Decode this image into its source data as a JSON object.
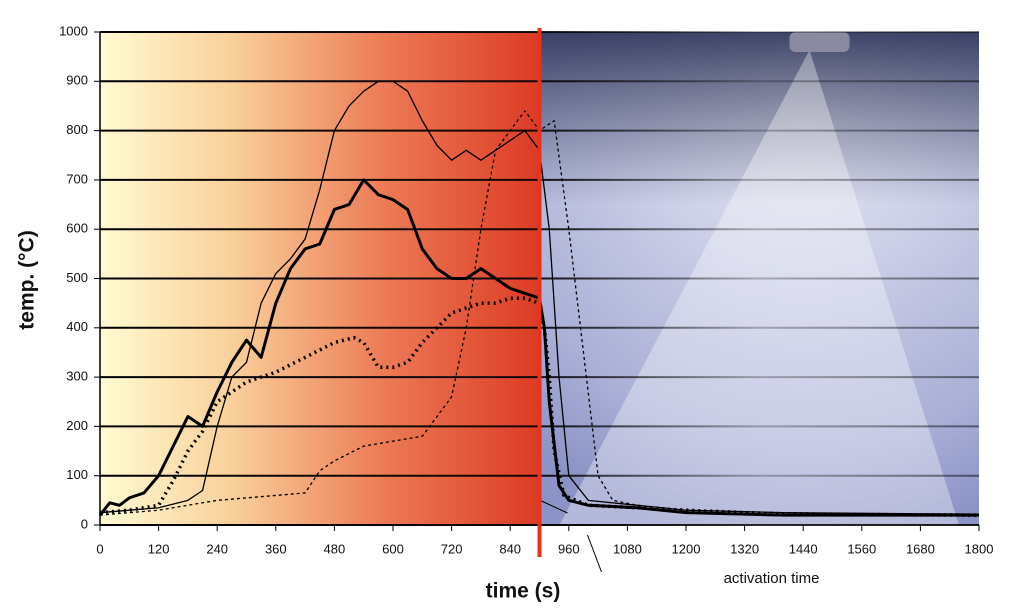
{
  "chart_data": {
    "type": "line",
    "x_label": "time (s)",
    "y_label": "temp. (°C)",
    "xlim": [
      0,
      1800
    ],
    "xticks": [
      0,
      120,
      240,
      360,
      480,
      600,
      720,
      840,
      960,
      1080,
      1200,
      1320,
      1440,
      1560,
      1680,
      1800
    ],
    "ylim": [
      0,
      1000
    ],
    "yticks": [
      0,
      100,
      200,
      300,
      400,
      500,
      600,
      700,
      800,
      900,
      1000
    ],
    "grid": true,
    "annotations": [
      {
        "text": "activation time",
        "x": 900,
        "color": "#e8321e"
      }
    ],
    "series": [
      {
        "color": "#000",
        "width": 3,
        "dash": "none",
        "x": [
          0,
          20,
          40,
          60,
          90,
          120,
          150,
          180,
          210,
          240,
          270,
          300,
          330,
          360,
          390,
          420,
          450,
          480,
          510,
          540,
          570,
          600,
          630,
          660,
          690,
          720,
          750,
          780,
          810,
          840,
          870,
          900,
          910,
          920,
          940,
          960,
          1000,
          1100,
          1200,
          1400,
          1800
        ],
        "values": [
          20,
          45,
          40,
          55,
          65,
          100,
          160,
          220,
          200,
          270,
          330,
          375,
          340,
          450,
          520,
          560,
          570,
          640,
          650,
          700,
          670,
          660,
          640,
          560,
          520,
          500,
          500,
          520,
          500,
          480,
          470,
          460,
          400,
          250,
          80,
          50,
          40,
          35,
          25,
          20,
          20
        ]
      },
      {
        "color": "#000",
        "width": 1.3,
        "dash": "none",
        "x": [
          0,
          60,
          120,
          180,
          210,
          240,
          270,
          300,
          330,
          360,
          390,
          420,
          450,
          480,
          510,
          540,
          570,
          600,
          630,
          660,
          690,
          720,
          750,
          780,
          810,
          840,
          870,
          900,
          920,
          940,
          960,
          1000,
          1100,
          1200,
          1400,
          1800
        ],
        "values": [
          25,
          30,
          35,
          50,
          70,
          200,
          300,
          330,
          450,
          510,
          540,
          580,
          680,
          800,
          850,
          880,
          900,
          900,
          880,
          820,
          770,
          740,
          760,
          740,
          760,
          780,
          800,
          760,
          600,
          300,
          100,
          50,
          40,
          30,
          25,
          22
        ]
      },
      {
        "color": "#000",
        "width": 3.5,
        "dash": "2 4",
        "x": [
          0,
          60,
          120,
          150,
          180,
          210,
          240,
          270,
          300,
          360,
          420,
          480,
          520,
          540,
          570,
          600,
          630,
          660,
          690,
          720,
          750,
          780,
          810,
          840,
          870,
          900,
          910,
          920,
          930,
          950,
          1000,
          1100,
          1200,
          1400,
          1800
        ],
        "values": [
          25,
          30,
          40,
          90,
          150,
          190,
          250,
          270,
          290,
          310,
          340,
          370,
          380,
          370,
          320,
          320,
          330,
          370,
          400,
          430,
          440,
          450,
          450,
          460,
          460,
          450,
          400,
          300,
          150,
          60,
          40,
          35,
          30,
          22,
          20
        ]
      },
      {
        "color": "#000",
        "width": 1.3,
        "dash": "3 3",
        "x": [
          0,
          60,
          120,
          180,
          240,
          300,
          360,
          420,
          450,
          480,
          540,
          600,
          660,
          720,
          750,
          780,
          810,
          840,
          870,
          900,
          930,
          960,
          990,
          1020,
          1050,
          1100,
          1200,
          1400,
          1800
        ],
        "values": [
          20,
          25,
          30,
          40,
          50,
          55,
          60,
          65,
          110,
          130,
          160,
          170,
          180,
          260,
          400,
          600,
          760,
          800,
          840,
          800,
          820,
          600,
          350,
          100,
          50,
          40,
          30,
          25,
          20
        ]
      }
    ]
  }
}
